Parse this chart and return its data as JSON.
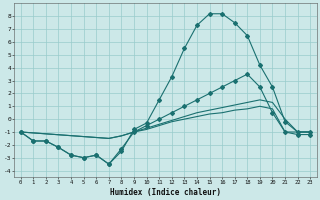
{
  "title": "",
  "xlabel": "Humidex (Indice chaleur)",
  "background_color": "#cce8e8",
  "grid_color": "#99cccc",
  "line_color": "#1a7070",
  "xlim": [
    -0.5,
    23.5
  ],
  "ylim": [
    -4.5,
    9.0
  ],
  "xticks": [
    0,
    1,
    2,
    3,
    4,
    5,
    6,
    7,
    8,
    9,
    10,
    11,
    12,
    13,
    14,
    15,
    16,
    17,
    18,
    19,
    20,
    21,
    22,
    23
  ],
  "yticks": [
    -4,
    -3,
    -2,
    -1,
    0,
    1,
    2,
    3,
    4,
    5,
    6,
    7,
    8
  ],
  "series1_x": [
    0,
    1,
    2,
    3,
    4,
    5,
    6,
    7,
    8,
    9,
    10,
    11,
    12,
    13,
    14,
    15,
    16,
    17,
    18,
    19,
    20,
    21,
    22,
    23
  ],
  "series1_y": [
    -1.0,
    -1.7,
    -1.7,
    -2.2,
    -2.8,
    -3.0,
    -2.8,
    -3.5,
    -2.5,
    -0.8,
    -0.3,
    1.5,
    3.3,
    5.5,
    7.3,
    8.2,
    8.2,
    7.5,
    6.5,
    4.2,
    2.5,
    -0.2,
    -1.0,
    -1.0
  ],
  "series2_x": [
    0,
    1,
    2,
    3,
    4,
    5,
    6,
    7,
    8,
    9,
    10,
    11,
    12,
    13,
    14,
    15,
    16,
    17,
    18,
    19,
    20,
    21,
    22,
    23
  ],
  "series2_y": [
    -1.0,
    -1.7,
    -1.7,
    -2.2,
    -2.8,
    -3.0,
    -2.8,
    -3.5,
    -2.3,
    -1.0,
    -0.5,
    0.0,
    0.5,
    1.0,
    1.5,
    2.0,
    2.5,
    3.0,
    3.5,
    2.5,
    0.5,
    -1.0,
    -1.2,
    -1.2
  ],
  "series3_x": [
    0,
    7,
    8,
    9,
    10,
    11,
    12,
    13,
    14,
    15,
    16,
    17,
    18,
    19,
    20,
    21,
    22,
    23
  ],
  "series3_y": [
    -1.0,
    -1.5,
    -1.3,
    -1.0,
    -0.8,
    -0.5,
    -0.2,
    0.0,
    0.2,
    0.4,
    0.5,
    0.7,
    0.8,
    1.0,
    0.8,
    -1.0,
    -1.0,
    -1.0
  ],
  "series4_x": [
    0,
    7,
    8,
    9,
    10,
    11,
    12,
    13,
    14,
    15,
    16,
    17,
    18,
    19,
    20,
    21,
    22,
    23
  ],
  "series4_y": [
    -1.0,
    -1.5,
    -1.3,
    -1.0,
    -0.7,
    -0.4,
    -0.1,
    0.2,
    0.5,
    0.7,
    0.9,
    1.1,
    1.3,
    1.5,
    1.3,
    0.0,
    -1.0,
    -1.0
  ]
}
